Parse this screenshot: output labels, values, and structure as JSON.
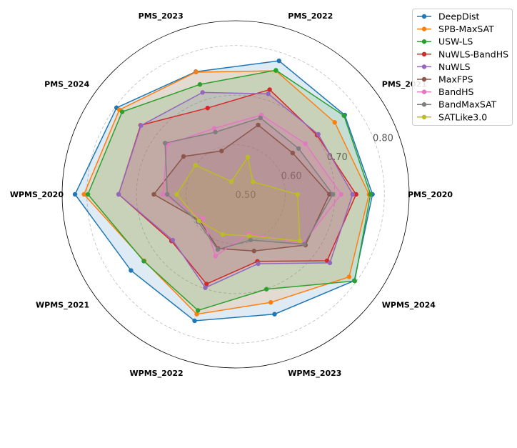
{
  "chart_data": {
    "type": "radar",
    "axes": [
      "PMS_2020",
      "PMS_2021",
      "PMS_2022",
      "PMS_2023",
      "PMS_2024",
      "WPMS_2020",
      "WPMS_2021",
      "WPMS_2022",
      "WPMS_2023",
      "WPMS_2024"
    ],
    "rlim": [
      0.5,
      0.85
    ],
    "rticks": [
      0.5,
      0.6,
      0.7,
      0.8
    ],
    "rtick_labels": [
      "0.50",
      "0.60",
      "0.70",
      "0.80"
    ],
    "grid": true,
    "legend_position": "top-right",
    "series": [
      {
        "name": "DeepDist",
        "color": "#1f77b4",
        "values": [
          0.776,
          0.772,
          0.783,
          0.76,
          0.797,
          0.824,
          0.761,
          0.768,
          0.754,
          0.796
        ]
      },
      {
        "name": "SPB-MaxSAT",
        "color": "#ff7f0e",
        "values": [
          0.769,
          0.747,
          0.762,
          0.759,
          0.79,
          0.806,
          0.728,
          0.754,
          0.729,
          0.783
        ]
      },
      {
        "name": "USW-LS",
        "color": "#2ca02c",
        "values": [
          0.772,
          0.77,
          0.763,
          0.733,
          0.783,
          0.798,
          0.729,
          0.746,
          0.701,
          0.797
        ]
      },
      {
        "name": "NuWLS-BandHS",
        "color": "#d62728",
        "values": [
          0.743,
          0.703,
          0.722,
          0.683,
          0.737,
          0.736,
          0.66,
          0.69,
          0.642,
          0.728
        ]
      },
      {
        "name": "NuWLS",
        "color": "#9467bd",
        "values": [
          0.736,
          0.706,
          0.713,
          0.716,
          0.736,
          0.736,
          0.657,
          0.698,
          0.647,
          0.735
        ]
      },
      {
        "name": "MaxFPS",
        "color": "#8c564b",
        "values": [
          0.689,
          0.642,
          0.647,
          0.592,
          0.63,
          0.665,
          0.59,
          0.615,
          0.62,
          0.674
        ]
      },
      {
        "name": "BandHS",
        "color": "#e377c2",
        "values": [
          0.713,
          0.674,
          0.668,
          0.64,
          0.671,
          0.647,
          0.582,
          0.631,
          0.583,
          0.668
        ]
      },
      {
        "name": "BandMaxSAT",
        "color": "#7f7f7f",
        "values": [
          0.696,
          0.657,
          0.662,
          0.632,
          0.676,
          0.638,
          0.594,
          0.617,
          0.597,
          0.671
        ]
      },
      {
        "name": "SATLike3.0",
        "color": "#bcbd22",
        "values": [
          0.625,
          0.543,
          0.579,
          0.527,
          0.6,
          0.619,
          0.591,
          0.585,
          0.588,
          0.66
        ]
      }
    ]
  }
}
